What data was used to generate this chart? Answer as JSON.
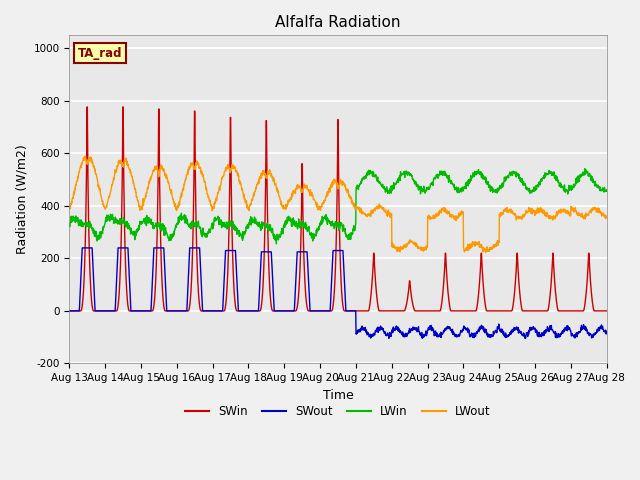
{
  "title": "Alfalfa Radiation",
  "xlabel": "Time",
  "ylabel": "Radiation (W/m2)",
  "ylim": [
    -200,
    1050
  ],
  "xlim": [
    0,
    15
  ],
  "x_tick_labels": [
    "Aug 13",
    "Aug 14",
    "Aug 15",
    "Aug 16",
    "Aug 17",
    "Aug 18",
    "Aug 19",
    "Aug 20",
    "Aug 21",
    "Aug 22",
    "Aug 23",
    "Aug 24",
    "Aug 25",
    "Aug 26",
    "Aug 27",
    "Aug 28"
  ],
  "yticks": [
    -200,
    0,
    200,
    400,
    600,
    800,
    1000
  ],
  "legend_entries": [
    "SWin",
    "SWout",
    "LWin",
    "LWout"
  ],
  "line_colors": {
    "SWin": "#cc0000",
    "SWout": "#0000cc",
    "LWin": "#00bb00",
    "LWout": "#ff9900"
  },
  "ta_rad_label": "TA_rad",
  "ta_rad_box_color": "#ffffaa",
  "ta_rad_text_color": "#880000",
  "plot_bg_color": "#e8e8e8",
  "fig_bg_color": "#f0f0f0",
  "grid_color": "#ffffff",
  "title_fontsize": 11,
  "label_fontsize": 9,
  "tick_fontsize": 7.5
}
